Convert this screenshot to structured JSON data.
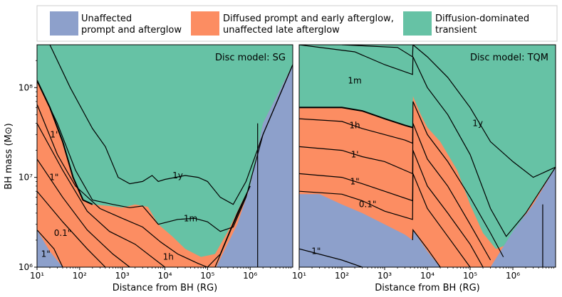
{
  "colors": {
    "unaffected": "#8da0cb",
    "diffused": "#fc8d62",
    "diffusion": "#66c2a5"
  },
  "legend": [
    {
      "line1": "Unaffected",
      "line2": "prompt and afterglow",
      "color_key": "unaffected"
    },
    {
      "line1": "Diffused prompt and early afterglow,",
      "line2": "unaffected late afterglow",
      "color_key": "diffused"
    },
    {
      "line1": "Diffusion-dominated",
      "line2": "transient",
      "color_key": "diffusion"
    }
  ],
  "ylabel": "BH mass (M⊙)",
  "chart_data": [
    {
      "type": "area",
      "title": "Disc model: SG",
      "xlabel": "Distance from BH (RG)",
      "ylabel": "BH mass (M⊙)",
      "xscale": "log",
      "yscale": "log",
      "xlim": [
        10,
        10000000
      ],
      "ylim": [
        1000000,
        300000000
      ],
      "xticks": [
        {
          "v": 10,
          "label": "10¹"
        },
        {
          "v": 100,
          "label": "10²"
        },
        {
          "v": 1000,
          "label": "10³"
        },
        {
          "v": 10000,
          "label": "10⁴"
        },
        {
          "v": 100000,
          "label": "10⁵"
        },
        {
          "v": 1000000,
          "label": "10⁶"
        }
      ],
      "yticks": [
        {
          "v": 1000000,
          "label": "10⁶"
        },
        {
          "v": 10000000,
          "label": "10⁷"
        },
        {
          "v": 100000000,
          "label": "10⁸"
        }
      ],
      "regions": {
        "diffused_upper": [
          [
            10,
            120000000
          ],
          [
            20,
            60000000
          ],
          [
            40,
            25000000
          ],
          [
            70,
            10000000
          ],
          [
            120,
            5600000
          ],
          [
            200,
            5000000
          ],
          [
            500,
            4800000
          ],
          [
            1000,
            4600000
          ],
          [
            2000,
            5000000
          ],
          [
            4000,
            4700000
          ],
          [
            7000,
            3000000
          ],
          [
            15000,
            2200000
          ],
          [
            30000,
            1600000
          ],
          [
            70000,
            1300000
          ],
          [
            150000,
            1400000
          ],
          [
            300000,
            2500000
          ],
          [
            600000,
            5000000
          ],
          [
            1000000,
            8000000
          ],
          [
            2000000,
            40000000
          ],
          [
            10000000,
            180000000
          ]
        ],
        "unaffected_upper": [
          [
            10,
            2600000
          ],
          [
            20,
            1500000
          ],
          [
            40,
            1000000
          ]
        ],
        "unaffected_right": [
          [
            160000,
            1000000
          ],
          [
            500000,
            3000000
          ],
          [
            1000000,
            8000000
          ],
          [
            2000000,
            40000000
          ],
          [
            10000000,
            180000000
          ]
        ]
      },
      "contours": [
        {
          "label": "1y",
          "points": [
            [
              20,
              300000000
            ],
            [
              60,
              100000000
            ],
            [
              200,
              35000000
            ],
            [
              400,
              22000000
            ],
            [
              800,
              10000000
            ],
            [
              1500,
              8500000
            ],
            [
              3000,
              9000000
            ],
            [
              5000,
              10500000
            ],
            [
              7000,
              9000000
            ],
            [
              10000,
              9500000
            ],
            [
              30000,
              10500000
            ],
            [
              60000,
              10000000
            ],
            [
              100000,
              9000000
            ],
            [
              200000,
              6000000
            ],
            [
              400000,
              5000000
            ],
            [
              800000,
              9000000
            ],
            [
              2000000,
              30000000
            ],
            [
              10000000,
              180000000
            ]
          ]
        },
        {
          "label": "1m",
          "points": [
            [
              10,
              120000000
            ],
            [
              30,
              40000000
            ],
            [
              80,
              12000000
            ],
            [
              200,
              5600000
            ],
            [
              600,
              5000000
            ],
            [
              1500,
              4600000
            ],
            [
              3000,
              4800000
            ],
            [
              7000,
              3000000
            ],
            [
              20000,
              3400000
            ],
            [
              50000,
              3500000
            ],
            [
              100000,
              3200000
            ],
            [
              200000,
              2500000
            ],
            [
              400000,
              2800000
            ],
            [
              800000,
              6000000
            ],
            [
              2000000,
              30000000
            ],
            [
              10000000,
              180000000
            ]
          ]
        },
        {
          "label": "1h",
          "points": [
            [
              10,
              65000000
            ],
            [
              30,
              18000000
            ],
            [
              80,
              8000000
            ],
            [
              300,
              4500000
            ],
            [
              1000,
              3500000
            ],
            [
              3000,
              2800000
            ],
            [
              8000,
              1900000
            ],
            [
              20000,
              1400000
            ],
            [
              60000,
              1100000
            ],
            [
              100000,
              1000000
            ]
          ]
        },
        {
          "label": "1'",
          "points": [
            [
              10,
              40000000
            ],
            [
              40,
              12000000
            ],
            [
              150,
              4200000
            ],
            [
              500,
              2500000
            ],
            [
              2000,
              1800000
            ],
            [
              10000,
              1000000
            ]
          ]
        },
        {
          "label": "1\"",
          "points": [
            [
              10,
              16000000
            ],
            [
              40,
              6000000
            ],
            [
              150,
              2600000
            ],
            [
              600,
              1400000
            ],
            [
              1500,
              1000000
            ]
          ]
        },
        {
          "label": "0.1\"",
          "points": [
            [
              10,
              7000000
            ],
            [
              40,
              3200000
            ],
            [
              150,
              1600000
            ],
            [
              400,
              1000000
            ]
          ]
        },
        {
          "label": "1\"",
          "points": [
            [
              10,
              2600000
            ],
            [
              25,
              1600000
            ],
            [
              40,
              1000000
            ]
          ]
        },
        {
          "label": "",
          "points": [
            [
              100000,
              1000000
            ],
            [
              200000,
              1400000
            ],
            [
              500000,
              4000000
            ],
            [
              1000000,
              8000000
            ]
          ]
        },
        {
          "label": "",
          "points": [
            [
              150000,
              1000000
            ],
            [
              400000,
              3000000
            ],
            [
              1000000,
              8000000
            ]
          ]
        }
      ],
      "contour_labels": [
        {
          "text": "1y",
          "x": 20000,
          "y": 10500000
        },
        {
          "text": "1m",
          "x": 40000,
          "y": 3500000
        },
        {
          "text": "1h",
          "x": 12000,
          "y": 1300000
        },
        {
          "text": "1'",
          "x": 25,
          "y": 30000000
        },
        {
          "text": "1\"",
          "x": 25,
          "y": 10000000
        },
        {
          "text": "0.1\"",
          "x": 40,
          "y": 2400000
        },
        {
          "text": "1\"",
          "x": 16,
          "y": 1400000
        }
      ],
      "vertical_line_x": 1500000
    },
    {
      "type": "area",
      "title": "Disc model: TQM",
      "xlabel": "Distance from BH (RG)",
      "xscale": "log",
      "yscale": "log",
      "xlim": [
        10,
        10000000
      ],
      "ylim": [
        1000000,
        300000000
      ],
      "xticks": [
        {
          "v": 10,
          "label": "10¹"
        },
        {
          "v": 100,
          "label": "10²"
        },
        {
          "v": 1000,
          "label": "10³"
        },
        {
          "v": 10000,
          "label": "10⁴"
        },
        {
          "v": 100000,
          "label": "10⁵"
        },
        {
          "v": 1000000,
          "label": "10⁶"
        }
      ],
      "regions": {
        "diffused_upper": [
          [
            10,
            60000000
          ],
          [
            100,
            60000000
          ],
          [
            300,
            55000000
          ],
          [
            1000,
            45000000
          ],
          [
            3000,
            38000000
          ],
          [
            4500,
            36000000
          ],
          [
            4600,
            80000000
          ],
          [
            7000,
            50000000
          ],
          [
            10000,
            36000000
          ],
          [
            20000,
            25000000
          ],
          [
            50000,
            12000000
          ],
          [
            100000,
            5000000
          ],
          [
            200000,
            2400000
          ],
          [
            400000,
            1600000
          ],
          [
            800000,
            1800000
          ],
          [
            2000000,
            4000000
          ],
          [
            10000000,
            13000000
          ]
        ],
        "unaffected_upper": [
          [
            10,
            6500000
          ],
          [
            30,
            6500000
          ],
          [
            100,
            5000000
          ],
          [
            300,
            4000000
          ],
          [
            1000,
            3000000
          ],
          [
            3000,
            2300000
          ],
          [
            4500,
            2000000
          ],
          [
            4600,
            2600000
          ],
          [
            10000,
            1500000
          ],
          [
            20000,
            1000000
          ]
        ],
        "unaffected_right": [
          [
            300000,
            1000000
          ],
          [
            1000000,
            2500000
          ],
          [
            3000000,
            5000000
          ],
          [
            10000000,
            13000000
          ]
        ]
      },
      "contours": [
        {
          "label": "1y",
          "points": [
            [
              100,
              300000000
            ],
            [
              2000,
              280000000
            ],
            [
              4500,
              220000000
            ],
            [
              4600,
              300000000
            ],
            [
              10000,
              220000000
            ],
            [
              30000,
              130000000
            ],
            [
              100000,
              60000000
            ],
            [
              300000,
              25000000
            ],
            [
              1000000,
              15000000
            ],
            [
              3000000,
              10000000
            ],
            [
              10000000,
              13000000
            ]
          ]
        },
        {
          "label": "1m",
          "points": [
            [
              10,
              300000000
            ],
            [
              200,
              250000000
            ],
            [
              1000,
              180000000
            ],
            [
              4500,
              140000000
            ],
            [
              4600,
              220000000
            ],
            [
              10000,
              100000000
            ],
            [
              30000,
              50000000
            ],
            [
              100000,
              18000000
            ],
            [
              300000,
              4500000
            ],
            [
              700000,
              2200000
            ],
            [
              2000000,
              4000000
            ],
            [
              10000000,
              13000000
            ]
          ]
        },
        {
          "label": "1h",
          "points": [
            [
              10,
              45000000
            ],
            [
              100,
              42000000
            ],
            [
              300,
              35000000
            ],
            [
              1000,
              30000000
            ],
            [
              3000,
              26000000
            ],
            [
              4500,
              24000000
            ],
            [
              4600,
              70000000
            ],
            [
              10000,
              30000000
            ],
            [
              30000,
              15000000
            ],
            [
              100000,
              6000000
            ],
            [
              300000,
              2400000
            ],
            [
              600000,
              1300000
            ]
          ]
        },
        {
          "label": "1'",
          "points": [
            [
              10,
              22000000
            ],
            [
              100,
              20000000
            ],
            [
              300,
              17000000
            ],
            [
              1000,
              15000000
            ],
            [
              4500,
              11000000
            ],
            [
              4600,
              40000000
            ],
            [
              10000,
              16000000
            ],
            [
              30000,
              8000000
            ],
            [
              100000,
              3000000
            ],
            [
              300000,
              1200000
            ]
          ]
        },
        {
          "label": "1\"",
          "points": [
            [
              10,
              11000000
            ],
            [
              100,
              10000000
            ],
            [
              300,
              8500000
            ],
            [
              1000,
              7000000
            ],
            [
              4500,
              5500000
            ],
            [
              4600,
              20000000
            ],
            [
              10000,
              8000000
            ],
            [
              30000,
              4000000
            ],
            [
              100000,
              1800000
            ],
            [
              200000,
              1000000
            ]
          ]
        },
        {
          "label": "0.1\"",
          "points": [
            [
              10,
              7000000
            ],
            [
              100,
              6500000
            ],
            [
              300,
              5500000
            ],
            [
              1000,
              4200000
            ],
            [
              4500,
              3400000
            ],
            [
              4600,
              11000000
            ],
            [
              10000,
              4500000
            ],
            [
              30000,
              2200000
            ],
            [
              100000,
              1000000
            ]
          ]
        },
        {
          "label": "1\"",
          "points": [
            [
              10,
              1600000
            ],
            [
              100,
              1200000
            ],
            [
              300,
              1000000
            ]
          ]
        },
        {
          "label": "",
          "points": [
            [
              4500,
              2000000
            ],
            [
              4600,
              2600000
            ],
            [
              10000,
              1600000
            ],
            [
              20000,
              1000000
            ]
          ]
        }
      ],
      "contour_labels": [
        {
          "text": "1y",
          "x": 150000,
          "y": 40000000
        },
        {
          "text": "1m",
          "x": 200,
          "y": 120000000
        },
        {
          "text": "1h",
          "x": 200,
          "y": 38000000
        },
        {
          "text": "1'",
          "x": 200,
          "y": 18000000
        },
        {
          "text": "1\"",
          "x": 200,
          "y": 9000000
        },
        {
          "text": "0.1\"",
          "x": 400,
          "y": 5000000
        },
        {
          "text": "1\"",
          "x": 25,
          "y": 1500000
        }
      ],
      "vertical_line_x": 5000000
    }
  ]
}
